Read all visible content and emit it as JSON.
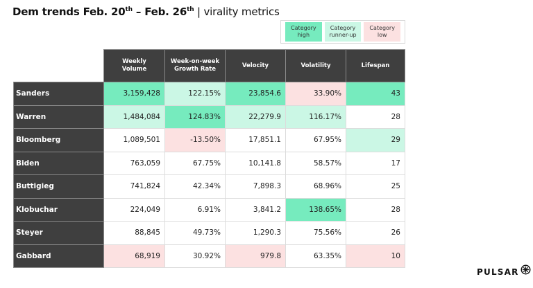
{
  "title": {
    "part1": "Dem trends Feb. 20",
    "sup1": "th",
    "part2": " – Feb. 26",
    "sup2": "th",
    "part3": " | virality metrics"
  },
  "colors": {
    "high": "#76ebbe",
    "runner_up": "#cbf7e5",
    "low": "#fce1e1",
    "none": "#ffffff",
    "header_bg": "#3f3f3f"
  },
  "legend": {
    "items": [
      {
        "label_line1": "Category",
        "label_line2": "high",
        "level": "high"
      },
      {
        "label_line1": "Category",
        "label_line2": "runner-up",
        "level": "runner_up"
      },
      {
        "label_line1": "Category",
        "label_line2": "low",
        "level": "low"
      }
    ]
  },
  "table": {
    "columns": [
      {
        "line1": "Weekly",
        "line2": "Volume"
      },
      {
        "line1": "Week-on-week",
        "line2": "Growth Rate"
      },
      {
        "line1": "Velocity",
        "line2": ""
      },
      {
        "line1": "Volatility",
        "line2": ""
      },
      {
        "line1": "Lifespan",
        "line2": ""
      }
    ],
    "rows": [
      {
        "name": "Sanders",
        "cells": [
          {
            "v": "3,159,428",
            "c": "high"
          },
          {
            "v": "122.15%",
            "c": "runner_up"
          },
          {
            "v": "23,854.6",
            "c": "high"
          },
          {
            "v": "33.90%",
            "c": "low"
          },
          {
            "v": "43",
            "c": "high"
          }
        ]
      },
      {
        "name": "Warren",
        "cells": [
          {
            "v": "1,484,084",
            "c": "runner_up"
          },
          {
            "v": "124.83%",
            "c": "high"
          },
          {
            "v": "22,279.9",
            "c": "runner_up"
          },
          {
            "v": "116.17%",
            "c": "runner_up"
          },
          {
            "v": "28",
            "c": "none"
          }
        ]
      },
      {
        "name": "Bloomberg",
        "cells": [
          {
            "v": "1,089,501",
            "c": "none"
          },
          {
            "v": "-13.50%",
            "c": "low"
          },
          {
            "v": "17,851.1",
            "c": "none"
          },
          {
            "v": "67.95%",
            "c": "none"
          },
          {
            "v": "29",
            "c": "runner_up"
          }
        ]
      },
      {
        "name": "Biden",
        "cells": [
          {
            "v": "763,059",
            "c": "none"
          },
          {
            "v": "67.75%",
            "c": "none"
          },
          {
            "v": "10,141.8",
            "c": "none"
          },
          {
            "v": "58.57%",
            "c": "none"
          },
          {
            "v": "17",
            "c": "none"
          }
        ]
      },
      {
        "name": "Buttigieg",
        "cells": [
          {
            "v": "741,824",
            "c": "none"
          },
          {
            "v": "42.34%",
            "c": "none"
          },
          {
            "v": "7,898.3",
            "c": "none"
          },
          {
            "v": "68.96%",
            "c": "none"
          },
          {
            "v": "25",
            "c": "none"
          }
        ]
      },
      {
        "name": "Klobuchar",
        "cells": [
          {
            "v": "224,049",
            "c": "none"
          },
          {
            "v": "6.91%",
            "c": "none"
          },
          {
            "v": "3,841.2",
            "c": "none"
          },
          {
            "v": "138.65%",
            "c": "high"
          },
          {
            "v": "28",
            "c": "none"
          }
        ]
      },
      {
        "name": "Steyer",
        "cells": [
          {
            "v": "88,845",
            "c": "none"
          },
          {
            "v": "49.73%",
            "c": "none"
          },
          {
            "v": "1,290.3",
            "c": "none"
          },
          {
            "v": "75.56%",
            "c": "none"
          },
          {
            "v": "26",
            "c": "none"
          }
        ]
      },
      {
        "name": "Gabbard",
        "cells": [
          {
            "v": "68,919",
            "c": "low"
          },
          {
            "v": "30.92%",
            "c": "none"
          },
          {
            "v": "979.8",
            "c": "low"
          },
          {
            "v": "63.35%",
            "c": "none"
          },
          {
            "v": "10",
            "c": "low"
          }
        ]
      }
    ]
  },
  "logo": {
    "text": "PULSAR",
    "icon": "pulsar-star-icon"
  }
}
